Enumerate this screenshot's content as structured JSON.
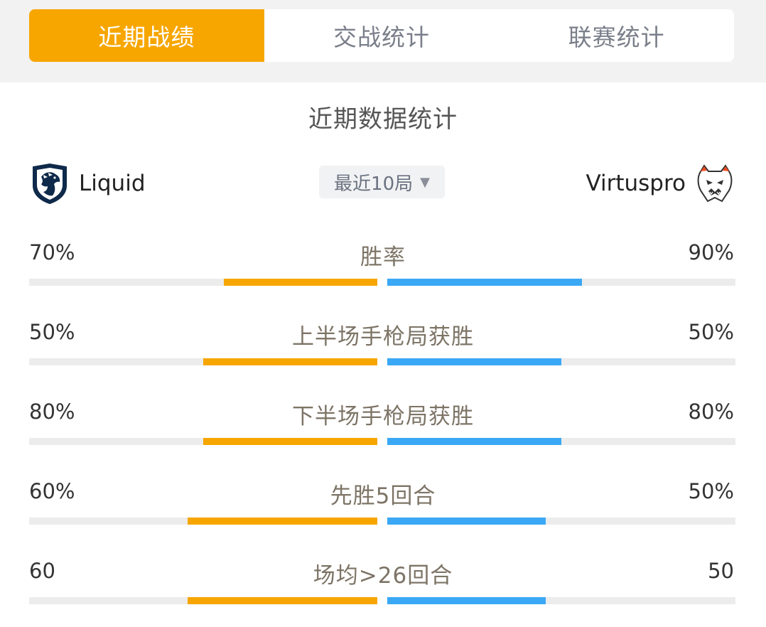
{
  "tabs": [
    {
      "label": "近期战绩",
      "active": true
    },
    {
      "label": "交战统计",
      "active": false
    },
    {
      "label": "联赛统计",
      "active": false
    }
  ],
  "section_title": "近期数据统计",
  "teams": {
    "left": {
      "name": "Liquid",
      "logo_icon": "liquid-horse-icon"
    },
    "right": {
      "name": "Virtuspro",
      "logo_icon": "virtuspro-bear-icon"
    }
  },
  "filter": {
    "label": "最近10局",
    "caret": "▼"
  },
  "colors": {
    "accent": "#f7a600",
    "left_bar": "#f7a600",
    "right_bar": "#3aa8f5",
    "track": "#ececec"
  },
  "stats": [
    {
      "label": "胜率",
      "left_text": "70%",
      "right_text": "90%",
      "left_fill": 0.44,
      "right_fill": 0.56
    },
    {
      "label": "上半场手枪局获胜",
      "left_text": "50%",
      "right_text": "50%",
      "left_fill": 0.5,
      "right_fill": 0.5
    },
    {
      "label": "下半场手枪局获胜",
      "left_text": "80%",
      "right_text": "80%",
      "left_fill": 0.5,
      "right_fill": 0.5
    },
    {
      "label": "先胜5回合",
      "left_text": "60%",
      "right_text": "50%",
      "left_fill": 0.545,
      "right_fill": 0.455
    },
    {
      "label": "场均>26回合",
      "left_text": "60",
      "right_text": "50",
      "left_fill": 0.545,
      "right_fill": 0.455
    }
  ]
}
